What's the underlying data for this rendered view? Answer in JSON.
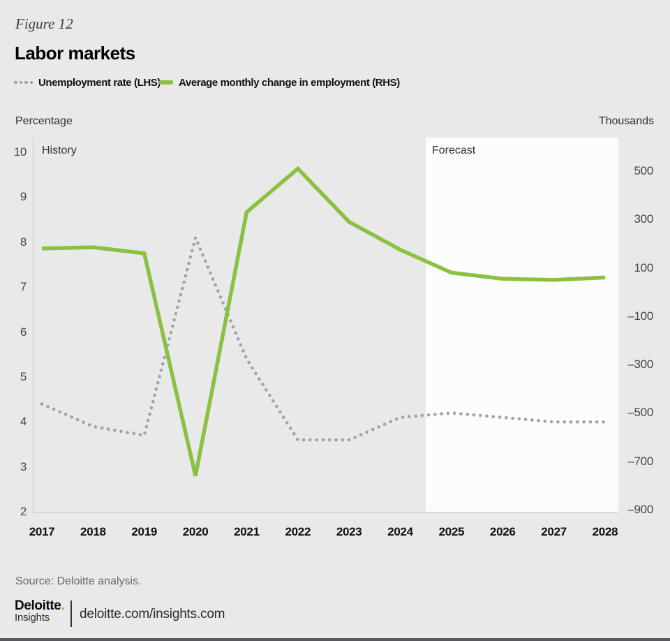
{
  "figure_label": "Figure 12",
  "title": "Labor markets",
  "legend": {
    "unemployment_label": "Unemployment rate (LHS)",
    "employment_label": "Average monthly change in employment (RHS)"
  },
  "colors": {
    "green_line": "#8bc140",
    "dotted_gray": "#a2a2a2",
    "deloitte_green": "#86bc25",
    "page_background": "#e9e9e9",
    "forecast_background": "#fcfcfc"
  },
  "regions": {
    "history_label": "History",
    "forecast_label": "Forecast"
  },
  "chart_data": {
    "type": "line",
    "x": [
      2017,
      2018,
      2019,
      2020,
      2021,
      2022,
      2023,
      2024,
      2025,
      2026,
      2027,
      2028
    ],
    "series": [
      {
        "name": "Unemployment rate (LHS)",
        "axis": "left",
        "style": "dotted",
        "color": "#a2a2a2",
        "values": [
          4.4,
          3.9,
          3.7,
          8.1,
          5.4,
          3.6,
          3.6,
          4.1,
          4.2,
          4.1,
          4.0,
          4.0
        ]
      },
      {
        "name": "Average monthly change in employment (RHS)",
        "axis": "right",
        "style": "solid",
        "color": "#8bc140",
        "values": [
          180,
          185,
          160,
          -760,
          330,
          510,
          290,
          175,
          80,
          55,
          50,
          60
        ]
      }
    ],
    "left_axis": {
      "label": "Percentage",
      "range": [
        2,
        10
      ],
      "ticks": [
        10,
        9,
        8,
        7,
        6,
        5,
        4,
        3,
        2
      ]
    },
    "right_axis": {
      "label": "Thousands",
      "range": [
        -900,
        500
      ],
      "ticks": [
        {
          "value": 500,
          "label": "500"
        },
        {
          "value": 300,
          "label": "300"
        },
        {
          "value": 100,
          "label": "100"
        },
        {
          "value": -100,
          "label": "–100"
        },
        {
          "value": -300,
          "label": "–300"
        },
        {
          "value": -500,
          "label": "–500"
        },
        {
          "value": -700,
          "label": "–700"
        },
        {
          "value": -900,
          "label": "–900"
        }
      ]
    },
    "regions": {
      "history": {
        "label": "History",
        "x_range": [
          2017,
          2024.5
        ]
      },
      "forecast": {
        "label": "Forecast",
        "x_range": [
          2024.5,
          2028
        ]
      }
    },
    "legend_position": "top",
    "grid": false
  },
  "footer": {
    "source": "Source: Deloitte analysis.",
    "logo_main": "Deloitte",
    "logo_dot": ".",
    "logo_sub": "Insights",
    "url": "deloitte.com/insights.com"
  }
}
